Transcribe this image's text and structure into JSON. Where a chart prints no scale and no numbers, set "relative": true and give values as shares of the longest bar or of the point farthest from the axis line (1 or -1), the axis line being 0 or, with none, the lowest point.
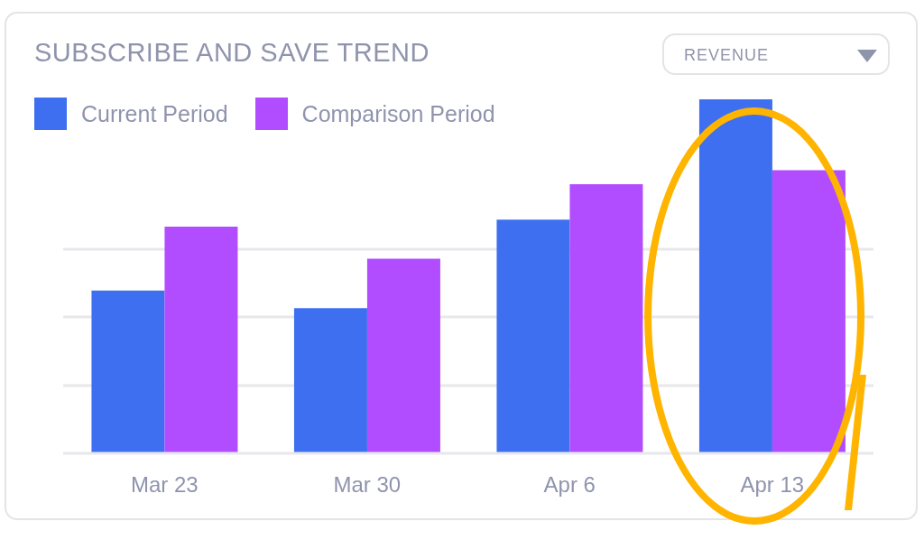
{
  "chart_data": {
    "type": "bar",
    "title": "SUBSCRIBE AND SAVE TREND",
    "categories": [
      "Mar 23",
      "Mar 30",
      "Apr 6",
      "Apr 13"
    ],
    "relative": true,
    "grid": "y",
    "legend": "top left",
    "series": [
      {
        "name": "Current Period",
        "color": "#3d6ff0",
        "values": [
          0.46,
          0.41,
          0.66,
          1
        ]
      },
      {
        "name": "Comparison Period",
        "color": "#b24dff",
        "values": [
          0.64,
          0.55,
          0.76,
          0.8
        ]
      }
    ],
    "annotations": [
      "REVENUE"
    ]
  }
}
